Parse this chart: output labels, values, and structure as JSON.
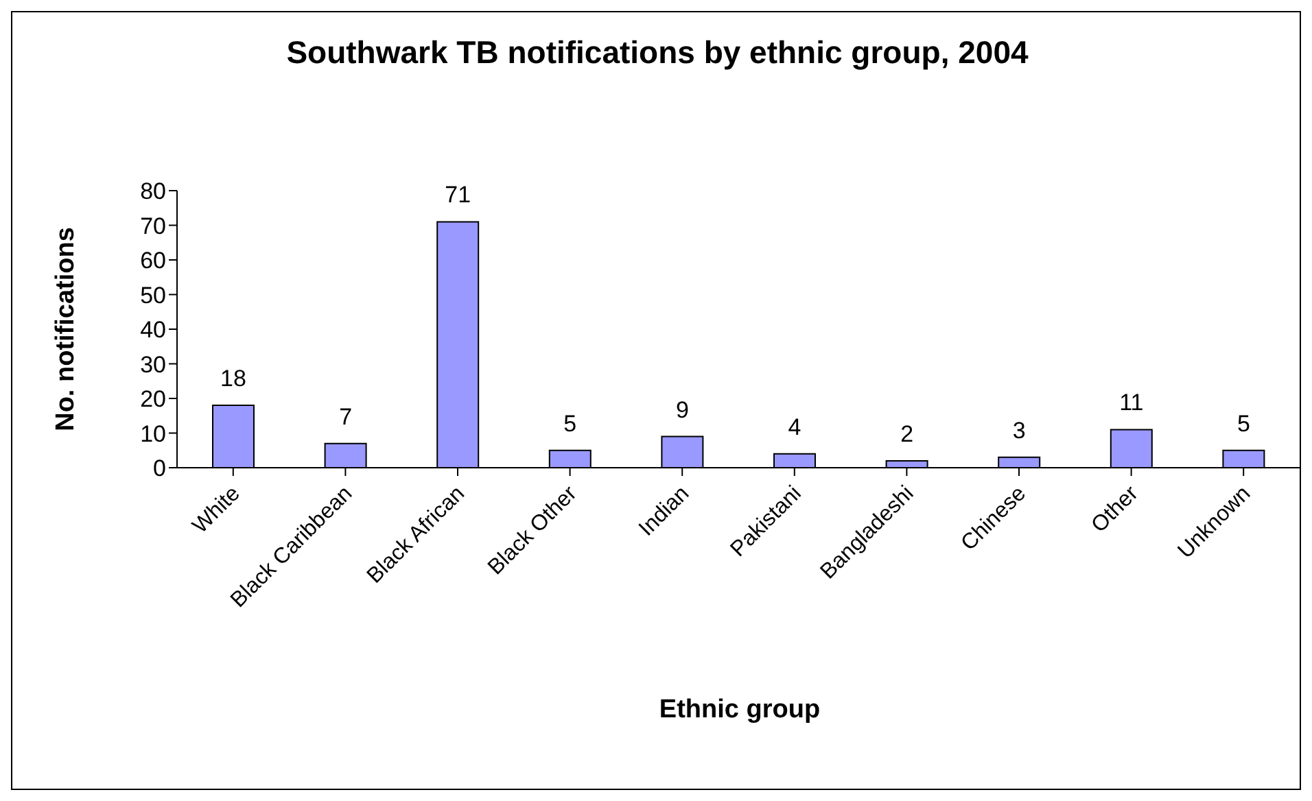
{
  "chart_data": {
    "type": "bar",
    "title": "Southwark TB notifications by ethnic group, 2004",
    "xlabel": "Ethnic group",
    "ylabel": "No. notifications",
    "categories": [
      "White",
      "Black Caribbean",
      "Black African",
      "Black Other",
      "Indian",
      "Pakistani",
      "Bangladeshi",
      "Chinese",
      "Other",
      "Unknown"
    ],
    "values": [
      18,
      7,
      71,
      5,
      9,
      4,
      2,
      3,
      11,
      5
    ],
    "color": "#9999ff",
    "ylim": [
      0,
      80
    ],
    "yticks": [
      0,
      10,
      20,
      30,
      40,
      50,
      60,
      70,
      80
    ],
    "grid": false,
    "legend": false,
    "data_labels": true
  }
}
